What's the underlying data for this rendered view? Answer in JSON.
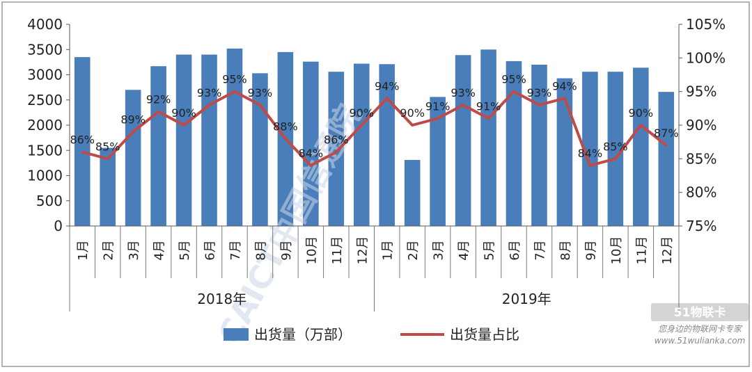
{
  "chart_data": {
    "type": "bar",
    "title": "",
    "categories": [
      "1月",
      "2月",
      "3月",
      "4月",
      "5月",
      "6月",
      "7月",
      "8月",
      "9月",
      "10月",
      "11月",
      "12月",
      "1月",
      "2月",
      "3月",
      "4月",
      "5月",
      "6月",
      "7月",
      "8月",
      "9月",
      "10月",
      "11月",
      "12月"
    ],
    "groups": [
      {
        "label": "2018年",
        "count": 12
      },
      {
        "label": "2019年",
        "count": 12
      }
    ],
    "series": [
      {
        "name": "出货量（万部）",
        "type": "bar",
        "axis": "left",
        "color": "#4a7ebb",
        "values": [
          3350,
          1550,
          2700,
          3170,
          3400,
          3400,
          3520,
          3030,
          3450,
          3260,
          3060,
          3220,
          3210,
          1310,
          2560,
          3390,
          3500,
          3270,
          3200,
          2930,
          3060,
          3060,
          3140,
          2660
        ]
      },
      {
        "name": "出货量占比",
        "type": "line",
        "axis": "right",
        "color": "#be4b48",
        "values": [
          86,
          85,
          89,
          92,
          90,
          93,
          95,
          93,
          88,
          84,
          86,
          90,
          94,
          90,
          91,
          93,
          91,
          95,
          93,
          94,
          84,
          85,
          90,
          87
        ],
        "labels": [
          "86%",
          "85%",
          "89%",
          "92%",
          "90%",
          "93%",
          "95%",
          "93%",
          "88%",
          "84%",
          "86%",
          "90%",
          "94%",
          "90%",
          "91%",
          "93%",
          "91%",
          "95%",
          "93%",
          "94%",
          "84%",
          "85%",
          "90%",
          "87%"
        ]
      }
    ],
    "y_left": {
      "min": 0,
      "max": 4000,
      "step": 500,
      "ticks": [
        "0",
        "500",
        "1000",
        "1500",
        "2000",
        "2500",
        "3000",
        "3500",
        "4000"
      ]
    },
    "y_right": {
      "min": 75,
      "max": 105,
      "step": 5,
      "ticks": [
        "75%",
        "80%",
        "85%",
        "90%",
        "95%",
        "100%",
        "105%"
      ]
    },
    "legend_position": "bottom",
    "grid": false
  },
  "legend": {
    "bar_label": "出货量（万部）",
    "line_label": "出货量占比"
  },
  "watermark": {
    "logo_text": "CAICT中国信通院",
    "brand_text": "51物联卡",
    "brand_tagline": "您身边的物联网卡专家",
    "brand_url": "www.51wulianka.com"
  }
}
